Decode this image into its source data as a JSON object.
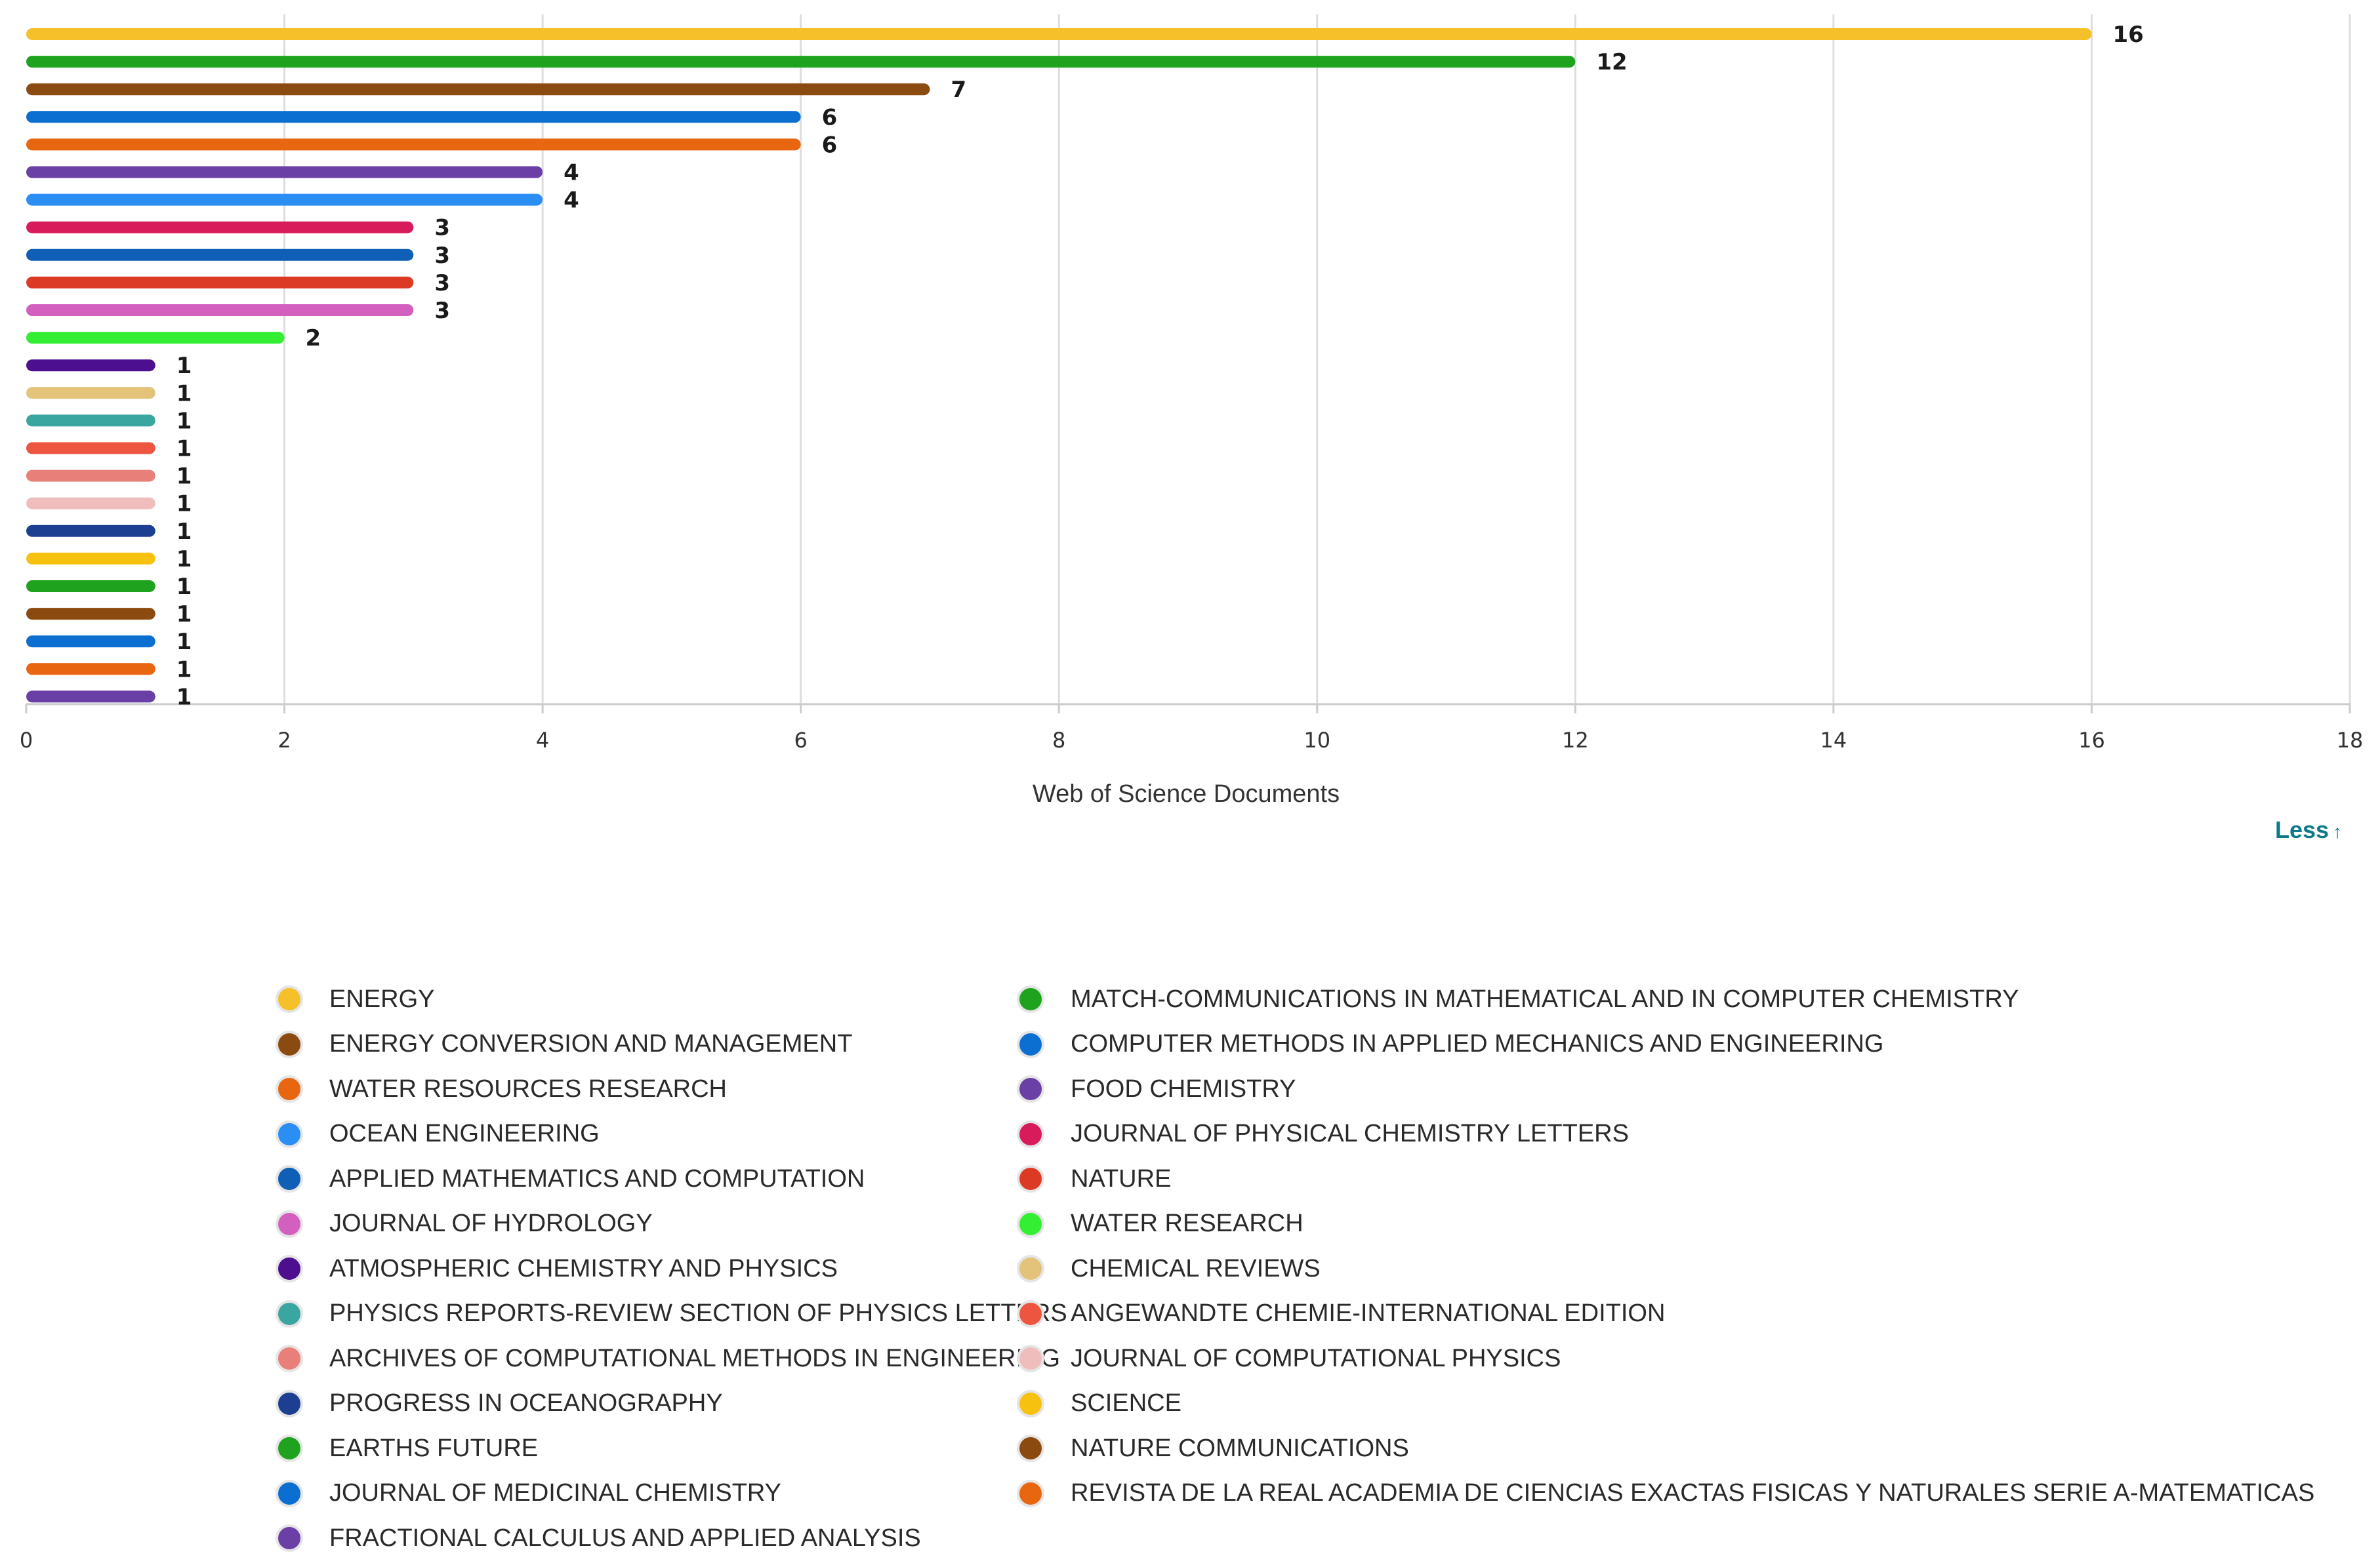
{
  "chart_data": {
    "type": "bar",
    "orientation": "horizontal",
    "xlabel": "Web of Science Documents",
    "xlim": [
      0,
      18
    ],
    "xticks": [
      0,
      2,
      4,
      6,
      8,
      10,
      12,
      14,
      16,
      18
    ],
    "grid": true,
    "legend_position": "bottom",
    "series": [
      {
        "name": "ENERGY",
        "value": 16,
        "color": "#f5c02a"
      },
      {
        "name": "MATCH-COMMUNICATIONS IN MATHEMATICAL AND IN COMPUTER CHEMISTRY",
        "value": 12,
        "color": "#1fa31f"
      },
      {
        "name": "ENERGY CONVERSION AND MANAGEMENT",
        "value": 7,
        "color": "#8b4a0f"
      },
      {
        "name": "COMPUTER METHODS IN APPLIED MECHANICS AND ENGINEERING",
        "value": 6,
        "color": "#0a6fd1"
      },
      {
        "name": "WATER RESOURCES RESEARCH",
        "value": 6,
        "color": "#e8660f"
      },
      {
        "name": "FOOD CHEMISTRY",
        "value": 4,
        "color": "#6a3fa6"
      },
      {
        "name": "OCEAN ENGINEERING",
        "value": 4,
        "color": "#2a8ef5"
      },
      {
        "name": "JOURNAL OF PHYSICAL CHEMISTRY LETTERS",
        "value": 3,
        "color": "#d81b5a"
      },
      {
        "name": "APPLIED MATHEMATICS AND COMPUTATION",
        "value": 3,
        "color": "#0e5fb5"
      },
      {
        "name": "NATURE",
        "value": 3,
        "color": "#dc3a25"
      },
      {
        "name": "JOURNAL OF HYDROLOGY",
        "value": 3,
        "color": "#d35fbf"
      },
      {
        "name": "WATER RESEARCH",
        "value": 2,
        "color": "#33ee33"
      },
      {
        "name": "ATMOSPHERIC CHEMISTRY AND PHYSICS",
        "value": 1,
        "color": "#4b0f8f"
      },
      {
        "name": "CHEMICAL REVIEWS",
        "value": 1,
        "color": "#e3c27a"
      },
      {
        "name": "PHYSICS REPORTS-REVIEW SECTION OF PHYSICS LETTERS",
        "value": 1,
        "color": "#3aa6a0"
      },
      {
        "name": "ANGEWANDTE CHEMIE-INTERNATIONAL EDITION",
        "value": 1,
        "color": "#ee5540"
      },
      {
        "name": "ARCHIVES OF COMPUTATIONAL METHODS IN ENGINEERING",
        "value": 1,
        "color": "#e87f78"
      },
      {
        "name": "JOURNAL OF COMPUTATIONAL PHYSICS",
        "value": 1,
        "color": "#f0bdbd"
      },
      {
        "name": "PROGRESS IN OCEANOGRAPHY",
        "value": 1,
        "color": "#1c3f91"
      },
      {
        "name": "SCIENCE",
        "value": 1,
        "color": "#f7c20f"
      },
      {
        "name": "EARTHS FUTURE",
        "value": 1,
        "color": "#1fa31f"
      },
      {
        "name": "NATURE COMMUNICATIONS",
        "value": 1,
        "color": "#8b4a0f"
      },
      {
        "name": "JOURNAL OF MEDICINAL CHEMISTRY",
        "value": 1,
        "color": "#0a6fd1"
      },
      {
        "name": "REVISTA DE LA REAL ACADEMIA DE CIENCIAS EXACTAS FISICAS Y NATURALES SERIE A-MATEMATICAS",
        "value": 1,
        "color": "#e8660f"
      },
      {
        "name": "FRACTIONAL CALCULUS AND APPLIED ANALYSIS",
        "value": 1,
        "color": "#6a3fa6"
      }
    ]
  },
  "legend": {
    "left": [
      {
        "label": "ENERGY",
        "color": "#f5c02a"
      },
      {
        "label": "ENERGY CONVERSION AND MANAGEMENT",
        "color": "#8b4a0f"
      },
      {
        "label": "WATER RESOURCES RESEARCH",
        "color": "#e8660f"
      },
      {
        "label": "OCEAN ENGINEERING",
        "color": "#2a8ef5"
      },
      {
        "label": "APPLIED MATHEMATICS AND COMPUTATION",
        "color": "#0e5fb5"
      },
      {
        "label": "JOURNAL OF HYDROLOGY",
        "color": "#d35fbf"
      },
      {
        "label": "ATMOSPHERIC CHEMISTRY AND PHYSICS",
        "color": "#4b0f8f"
      },
      {
        "label": "PHYSICS REPORTS-REVIEW SECTION OF PHYSICS LETTERS",
        "color": "#3aa6a0"
      },
      {
        "label": "ARCHIVES OF COMPUTATIONAL METHODS IN ENGINEERING",
        "color": "#e87f78"
      },
      {
        "label": "PROGRESS IN OCEANOGRAPHY",
        "color": "#1c3f91"
      },
      {
        "label": "EARTHS FUTURE",
        "color": "#1fa31f"
      },
      {
        "label": "JOURNAL OF MEDICINAL CHEMISTRY",
        "color": "#0a6fd1"
      },
      {
        "label": "FRACTIONAL CALCULUS AND APPLIED ANALYSIS",
        "color": "#6a3fa6"
      }
    ],
    "right": [
      {
        "label": "MATCH-COMMUNICATIONS IN MATHEMATICAL AND IN COMPUTER CHEMISTRY",
        "color": "#1fa31f"
      },
      {
        "label": "COMPUTER METHODS IN APPLIED MECHANICS AND ENGINEERING",
        "color": "#0a6fd1"
      },
      {
        "label": "FOOD CHEMISTRY",
        "color": "#6a3fa6"
      },
      {
        "label": "JOURNAL OF PHYSICAL CHEMISTRY LETTERS",
        "color": "#d81b5a"
      },
      {
        "label": "NATURE",
        "color": "#dc3a25"
      },
      {
        "label": "WATER RESEARCH",
        "color": "#33ee33"
      },
      {
        "label": "CHEMICAL REVIEWS",
        "color": "#e3c27a"
      },
      {
        "label": "ANGEWANDTE CHEMIE-INTERNATIONAL EDITION",
        "color": "#ee5540"
      },
      {
        "label": "JOURNAL OF COMPUTATIONAL PHYSICS",
        "color": "#f0bdbd"
      },
      {
        "label": "SCIENCE",
        "color": "#f7c20f"
      },
      {
        "label": "NATURE COMMUNICATIONS",
        "color": "#8b4a0f"
      },
      {
        "label": "REVISTA DE LA REAL ACADEMIA DE CIENCIAS EXACTAS FISICAS Y NATURALES SERIE A-MATEMATICAS",
        "color": "#e8660f"
      }
    ]
  },
  "controls": {
    "less_label": "Less",
    "less_icon": "arrow-up-icon"
  }
}
